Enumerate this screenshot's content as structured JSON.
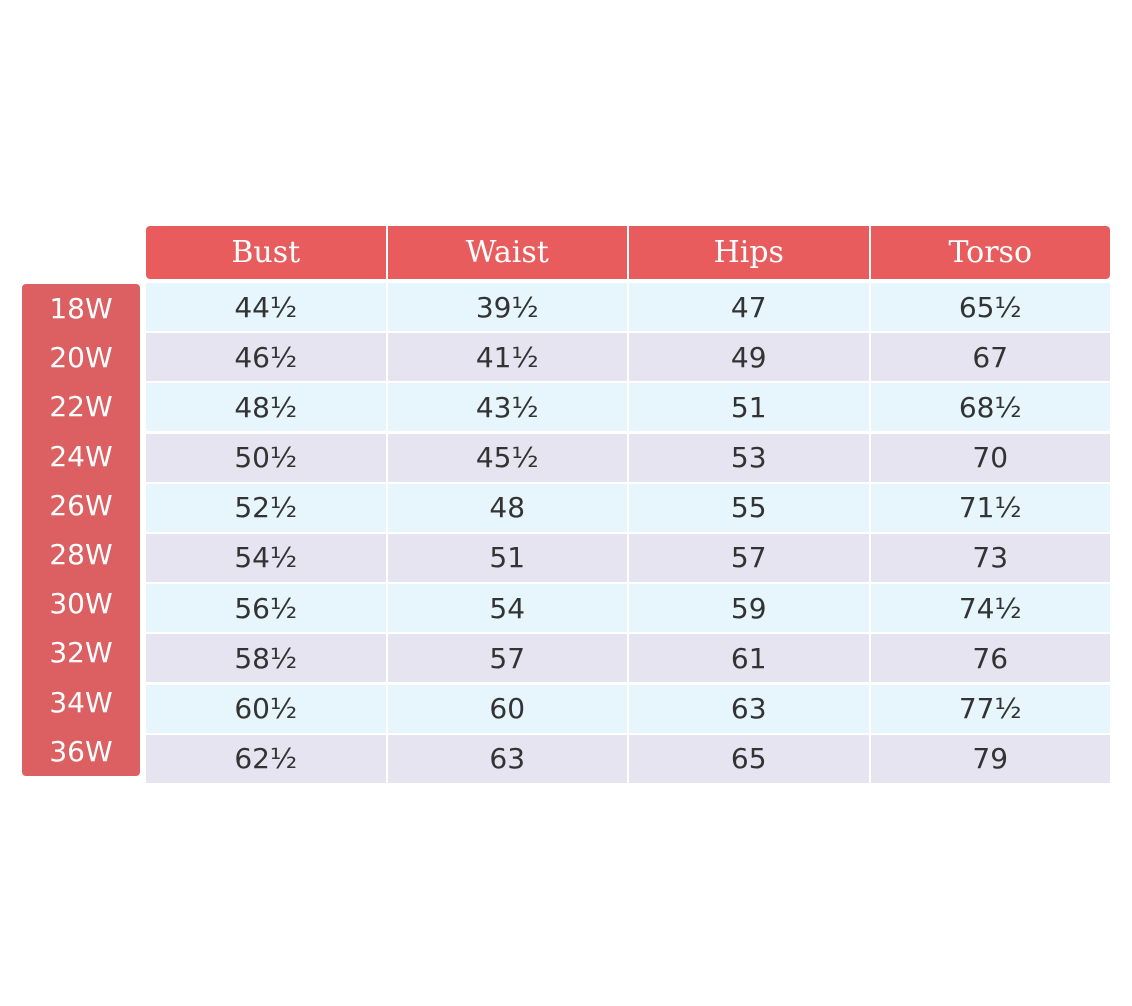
{
  "columns": [
    "Bust",
    "Waist",
    "Hips",
    "Torso"
  ],
  "rows": [
    {
      "size": "18W",
      "values": [
        "44½",
        "39½",
        "47",
        "65½"
      ]
    },
    {
      "size": "20W",
      "values": [
        "46½",
        "41½",
        "49",
        "67"
      ]
    },
    {
      "size": "22W",
      "values": [
        "48½",
        "43½",
        "51",
        "68½"
      ]
    },
    {
      "size": "24W",
      "values": [
        "50½",
        "45½",
        "53",
        "70"
      ]
    },
    {
      "size": "26W",
      "values": [
        "52½",
        "48",
        "55",
        "71½"
      ]
    },
    {
      "size": "28W",
      "values": [
        "54½",
        "51",
        "57",
        "73"
      ]
    },
    {
      "size": "30W",
      "values": [
        "56½",
        "54",
        "59",
        "74½"
      ]
    },
    {
      "size": "32W",
      "values": [
        "58½",
        "57",
        "61",
        "76"
      ]
    },
    {
      "size": "34W",
      "values": [
        "60½",
        "60",
        "63",
        "77½"
      ]
    },
    {
      "size": "36W",
      "values": [
        "62½",
        "63",
        "65",
        "79"
      ]
    }
  ],
  "colors": {
    "header": "#e85c5e",
    "size_column": "#dc5f62",
    "row_light_blue": "#e6f6fc",
    "row_lavender": "#e5e4f0",
    "text": "#333333"
  }
}
